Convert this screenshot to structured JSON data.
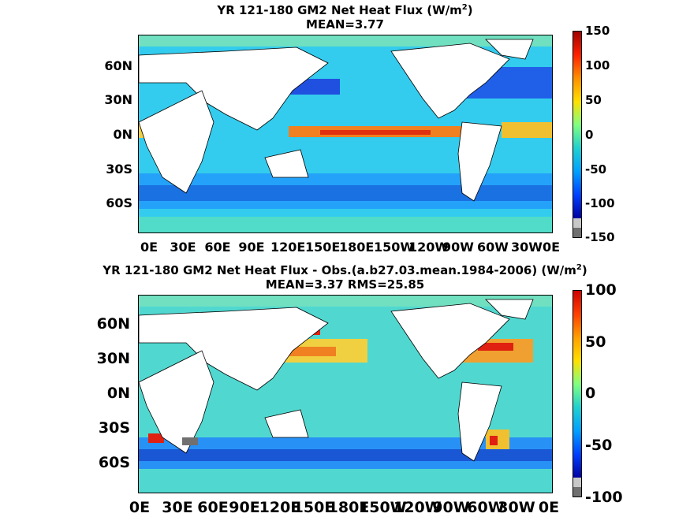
{
  "chart_data": [
    {
      "type": "heatmap",
      "title": "YR 121-180 GM2  Net Heat Flux (W/m",
      "title_sup": "2",
      "title_end": ")",
      "subtitle": "MEAN=3.77",
      "xtick_labels": [
        "0E",
        "30E",
        "60E",
        "90E",
        "120E",
        "150E",
        "180E",
        "150W",
        "120W",
        "90W",
        "60W",
        "30W",
        "0E"
      ],
      "ytick_labels": [
        "60N",
        "30N",
        "0N",
        "30S",
        "60S"
      ],
      "colorbar_ticks": [
        "150",
        "100",
        "50",
        "0",
        "-50",
        "-100",
        "-150"
      ],
      "colorbar_range": [
        -150,
        150
      ]
    },
    {
      "type": "heatmap",
      "title": "YR 121-180 GM2  Net Heat Flux - Obs.(a.b27.03.mean.1984-2006) (W/m",
      "title_sup": "2",
      "title_end": ")",
      "subtitle": "MEAN=3.37 RMS=25.85",
      "xtick_labels": [
        "0E",
        "30E",
        "60E",
        "90E",
        "120E",
        "150E",
        "180E",
        "150W",
        "120W",
        "90W",
        "60W",
        "30W",
        "0E"
      ],
      "ytick_labels": [
        "60N",
        "30N",
        "0N",
        "30S",
        "60S"
      ],
      "colorbar_ticks": [
        "100",
        "50",
        "0",
        "-50",
        "-100"
      ],
      "colorbar_range": [
        -100,
        100
      ]
    }
  ]
}
